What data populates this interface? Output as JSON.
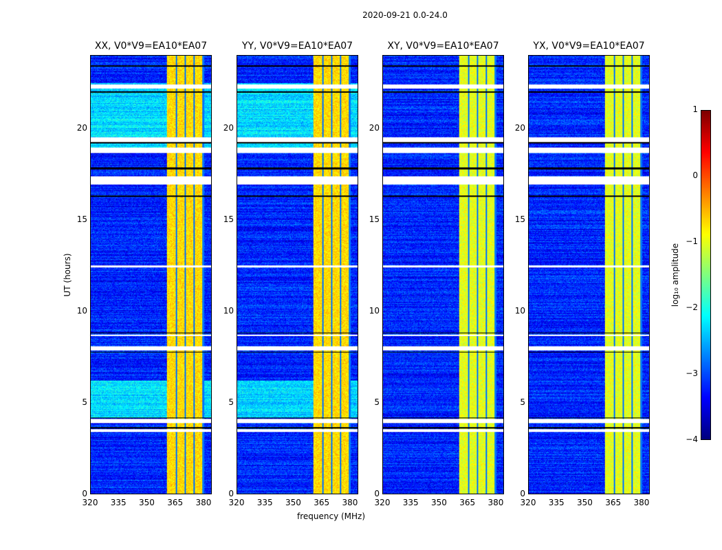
{
  "suptitle": "2020-09-21 0.0-24.0",
  "panels": [
    {
      "title": "XX, V0*V9=EA10*EA07",
      "pol": "XX"
    },
    {
      "title": "YY, V0*V9=EA10*EA07",
      "pol": "YY"
    },
    {
      "title": "XY, V0*V9=EA10*EA07",
      "pol": "XY"
    },
    {
      "title": "YX, V0*V9=EA10*EA07",
      "pol": "YX"
    }
  ],
  "chart_data": {
    "type": "heatmap",
    "title": "2020-09-21 0.0-24.0",
    "xlabel": "frequency (MHz)",
    "ylabel": "UT (hours)",
    "xlim": [
      320,
      384.4
    ],
    "ylim": [
      0,
      24
    ],
    "xticks": [
      "320",
      "335",
      "350",
      "365",
      "380"
    ],
    "yticks": [
      "0",
      "5",
      "10",
      "15",
      "20"
    ],
    "colorbar": {
      "label": "log₁₀ amplitude",
      "range": [
        -4,
        1
      ],
      "ticks": [
        "1",
        "0",
        "−1",
        "−2",
        "−3",
        "−4"
      ],
      "colormap": "jet"
    },
    "baseline_log_amplitude": -3.2,
    "bright_band_mhz": [
      360.7,
      380.4
    ],
    "bright_band_log_amplitude": -0.8,
    "bright_band_dividers_mhz": [
      365.8,
      370.5,
      375.2,
      380.0
    ],
    "flagged_white_hours": [
      [
        22.2,
        22.45
      ],
      [
        19.3,
        19.55
      ],
      [
        18.7,
        18.98
      ],
      [
        16.95,
        17.4
      ],
      [
        12.4,
        12.52
      ],
      [
        8.65,
        8.75
      ],
      [
        7.85,
        8.1
      ],
      [
        3.9,
        4.1
      ],
      [
        3.4,
        3.55
      ]
    ],
    "flagged_black_hours": [
      [
        23.4,
        23.5
      ],
      [
        22.0,
        22.05
      ],
      [
        19.2,
        19.28
      ],
      [
        17.8,
        17.9
      ],
      [
        16.3,
        16.36
      ],
      [
        8.8,
        8.85
      ],
      [
        7.75,
        7.8
      ],
      [
        4.15,
        4.2
      ],
      [
        3.6,
        3.65
      ]
    ],
    "brighter_hours": [
      [
        19.0,
        22.5
      ],
      [
        4.2,
        6.2
      ]
    ]
  }
}
